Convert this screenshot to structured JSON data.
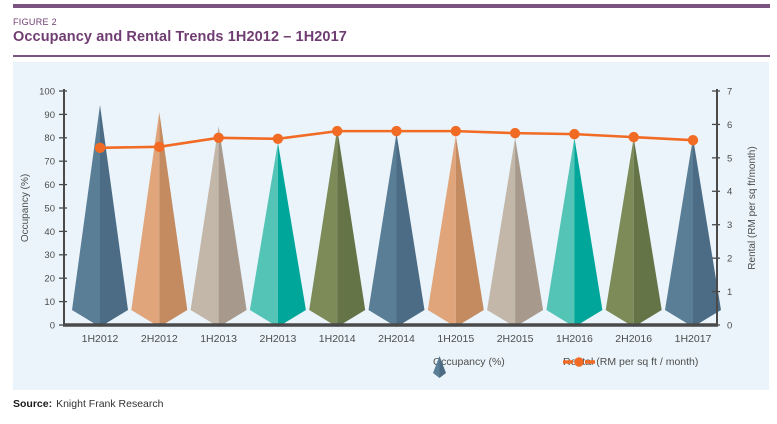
{
  "figure_label": "FIGURE 2",
  "title": "Occupancy and Rental Trends 1H2012 – 1H2017",
  "source": {
    "label": "Source:",
    "text": "Knight Frank Research"
  },
  "colors": {
    "accent_purple": "#703d72",
    "rule_purple": "#7c5480",
    "panel_bg": "#eaf4fa",
    "axis_line": "#4a4a4a",
    "text_gray": "#4d4d4d",
    "rental_line": "#f26b24",
    "cone_palette": [
      {
        "name": "steel-blue",
        "light": "#5b7e97",
        "dark": "#4c6c85"
      },
      {
        "name": "tan",
        "light": "#e0a57b",
        "dark": "#c48a60"
      },
      {
        "name": "beige",
        "light": "#c3b7a9",
        "dark": "#a79a8d"
      },
      {
        "name": "teal",
        "light": "#54c4b7",
        "dark": "#00a69a"
      },
      {
        "name": "olive",
        "light": "#7c8b58",
        "dark": "#647447"
      }
    ]
  },
  "chart_data": {
    "type": "combo-cone-column-line",
    "title": "Occupancy and Rental Trends 1H2012 – 1H2017",
    "categories": [
      "1H2012",
      "2H2012",
      "1H2013",
      "2H2013",
      "1H2014",
      "2H2014",
      "1H2015",
      "2H2015",
      "1H2016",
      "2H2016",
      "1H2017"
    ],
    "series": [
      {
        "name": "Occupancy (%)",
        "type": "cone",
        "axis": "left",
        "values": [
          94,
          91,
          85,
          78,
          84,
          82,
          81,
          80,
          80,
          80,
          80
        ]
      },
      {
        "name": "Rental (RM per sq ft / month)",
        "type": "line",
        "axis": "right",
        "values": [
          5.3,
          5.33,
          5.6,
          5.57,
          5.8,
          5.8,
          5.8,
          5.74,
          5.71,
          5.62,
          5.53
        ]
      }
    ],
    "left_axis": {
      "label": "Occupancy (%)",
      "min": 0,
      "max": 100,
      "ticks": [
        0,
        10,
        20,
        30,
        40,
        50,
        60,
        70,
        80,
        90,
        100
      ]
    },
    "right_axis": {
      "label": "Rental (RM per sq ft/month)",
      "min": 0,
      "max": 7,
      "ticks": [
        0,
        1,
        2,
        3,
        4,
        5,
        6,
        7
      ]
    },
    "grid": false,
    "legend_position": "bottom"
  }
}
